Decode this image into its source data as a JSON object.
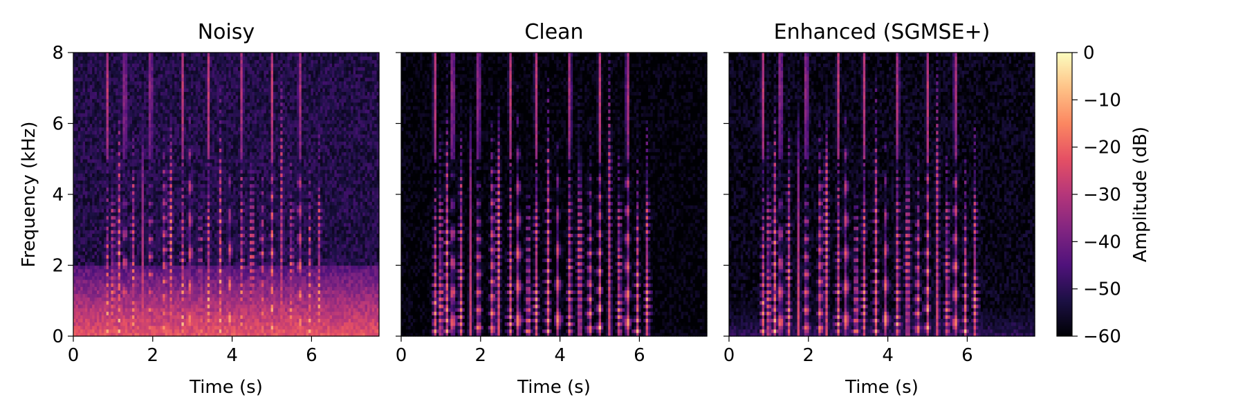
{
  "chart_data": {
    "type": "heatmap",
    "panels": [
      {
        "title": "Noisy",
        "xlabel": "Time (s)",
        "ylabel": "Frequency (kHz)",
        "xlim": [
          0,
          7.7
        ],
        "ylim": [
          0,
          8
        ],
        "xticks": [
          "0",
          "2",
          "4",
          "6"
        ],
        "yticks": [
          "0",
          "2",
          "4",
          "6",
          "8"
        ],
        "noise_floor_db": -52,
        "low_freq_noise_db": -22,
        "speech_span_s": [
          0.8,
          6.4
        ]
      },
      {
        "title": "Clean",
        "xlabel": "Time (s)",
        "xlim": [
          0,
          7.7
        ],
        "ylim": [
          0,
          8
        ],
        "xticks": [
          "0",
          "2",
          "4",
          "6"
        ],
        "noise_floor_db": -60,
        "low_freq_noise_db": -60,
        "speech_span_s": [
          0.8,
          6.4
        ]
      },
      {
        "title": "Enhanced (SGMSE+)",
        "xlabel": "Time (s)",
        "xlim": [
          0,
          7.7
        ],
        "ylim": [
          0,
          8
        ],
        "xticks": [
          "0",
          "2",
          "4",
          "6"
        ],
        "noise_floor_db": -58,
        "low_freq_noise_db": -50,
        "speech_span_s": [
          0.8,
          6.3
        ]
      }
    ],
    "colorbar": {
      "label": "Amplitude (dB)",
      "range": [
        -60,
        0
      ],
      "ticks": [
        "0",
        "−10",
        "−20",
        "−30",
        "−40",
        "−50",
        "−60"
      ],
      "colormap": "magma"
    },
    "speech_bursts_s": [
      0.85,
      1.0,
      1.15,
      1.3,
      1.5,
      1.75,
      1.95,
      2.3,
      2.45,
      2.75,
      2.95,
      3.2,
      3.4,
      3.7,
      3.95,
      4.25,
      4.5,
      4.75,
      5.0,
      5.25,
      5.5,
      5.7,
      5.95,
      6.2
    ]
  }
}
